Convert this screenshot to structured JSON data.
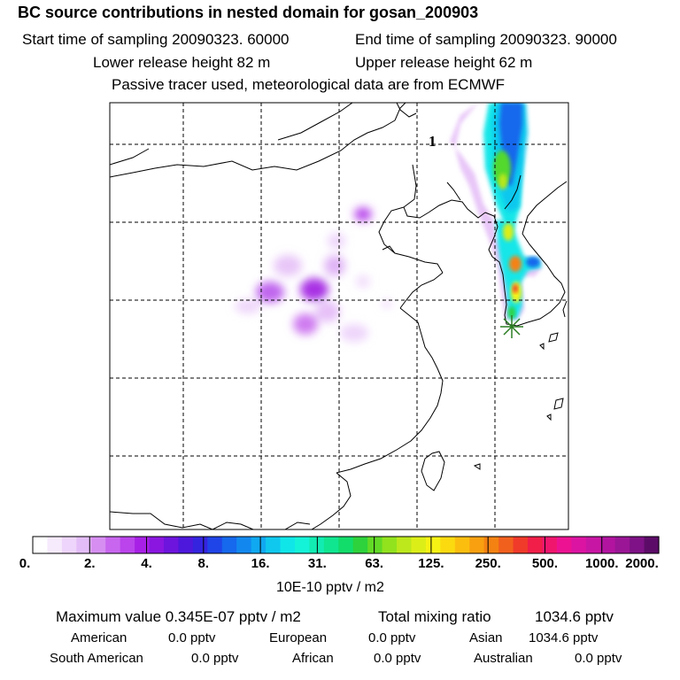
{
  "header": {
    "title": "BC  source contributions in nested domain for gosan_200903",
    "start_time": "Start time of sampling 20090323. 60000",
    "end_time": "End time of sampling 20090323. 90000",
    "lower_height": "Lower release height   82 m",
    "upper_height": "Upper release height   62 m",
    "tracer_note": "Passive tracer used, meteorological data are from ECMWF"
  },
  "map": {
    "marker_label": "1",
    "receptor_symbol": "asterisk",
    "colors": {
      "coast": "#000000",
      "grid": "#000000",
      "marker": "#2a7d22"
    }
  },
  "colorbar": {
    "tick_labels": [
      "0.",
      "2.",
      "4.",
      "8.",
      "16.",
      "31.",
      "63.",
      "125.",
      "250.",
      "500.",
      "1000.",
      "2000."
    ],
    "units": "10E-10 pptv / m2",
    "segment_colors": [
      "#ffffff",
      "#f6eafd",
      "#eed5fb",
      "#e3bdf8",
      "#d68ff1",
      "#c866ef",
      "#bb44ec",
      "#a820e6",
      "#8a16e0",
      "#6d14dd",
      "#4e18dc",
      "#3424df",
      "#1f44e8",
      "#1668ec",
      "#1288ef",
      "#10a8f0",
      "#10c8ee",
      "#10e6e8",
      "#14f2d8",
      "#12ecb2",
      "#10e690",
      "#12dc6a",
      "#2ed23c",
      "#62da26",
      "#92e21e",
      "#bce81c",
      "#dcee18",
      "#f6f214",
      "#fcda10",
      "#fcbe0e",
      "#f8a010",
      "#f48212",
      "#f2601e",
      "#f03a2a",
      "#f01e48",
      "#f0166e",
      "#ec1292",
      "#dc14a2",
      "#c816a4",
      "#b214a0",
      "#9a1696",
      "#7e1286",
      "#5c0c68"
    ]
  },
  "summary": {
    "max_label": "Maximum value  0.345E-07 pptv / m2",
    "total_label": "Total mixing ratio",
    "total_value": "1034.6 pptv",
    "regions": [
      {
        "name": "American",
        "value": "0.0 pptv"
      },
      {
        "name": "European",
        "value": "0.0 pptv"
      },
      {
        "name": "Asian",
        "value": "1034.6 pptv"
      },
      {
        "name": "South American",
        "value": "0.0 pptv"
      },
      {
        "name": "African",
        "value": "0.0 pptv"
      },
      {
        "name": "Australian",
        "value": "0.0 pptv"
      }
    ]
  }
}
